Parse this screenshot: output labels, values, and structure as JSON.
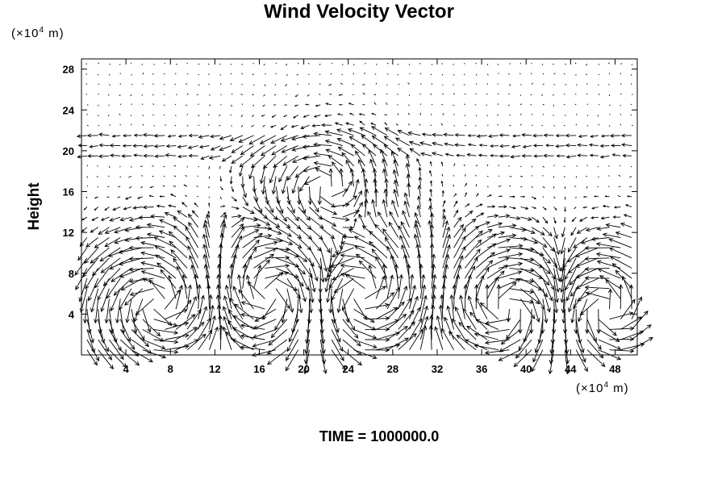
{
  "chart_data": {
    "type": "vector-field",
    "title": "Wind Velocity Vector",
    "ylabel": "Height",
    "y_unit": {
      "prefix": "(×10",
      "exp": "4",
      "suffix": " m)"
    },
    "x_unit": {
      "prefix": "(×10",
      "exp": "4",
      "suffix": " m)"
    },
    "xlim": [
      0,
      50
    ],
    "ylim": [
      0,
      29
    ],
    "xticks": [
      4,
      8,
      12,
      16,
      20,
      24,
      28,
      32,
      36,
      40,
      44,
      48
    ],
    "yticks": [
      4,
      8,
      12,
      16,
      20,
      24,
      28
    ],
    "grid": false,
    "vortices": [
      {
        "x": 7,
        "y": 5,
        "strength": 1.0
      },
      {
        "x": 17,
        "y": 6,
        "strength": -0.8
      },
      {
        "x": 25,
        "y": 6,
        "strength": 0.8
      },
      {
        "x": 38.5,
        "y": 4.5,
        "strength": -1.0
      },
      {
        "x": 47,
        "y": 4.5,
        "strength": 0.8
      },
      {
        "x": 22,
        "y": 16.5,
        "strength": 0.5
      }
    ],
    "upper_flow": {
      "from_y": 19.5,
      "to_y": 22,
      "u": -1.1
    },
    "time_label": "TIME = 1000000.0"
  }
}
